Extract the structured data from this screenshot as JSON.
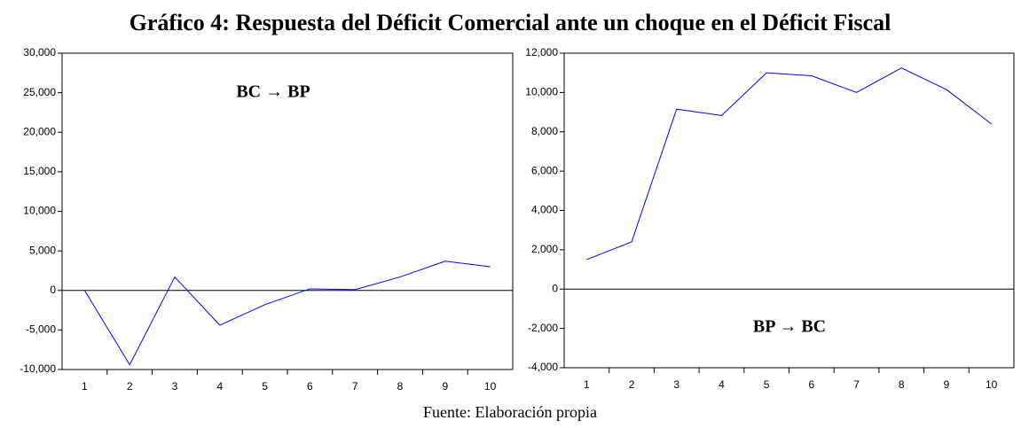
{
  "title": "Gráfico 4: Respuesta del Déficit Comercial ante un choque en el Déficit Fiscal",
  "source": "Fuente: Elaboración propia",
  "chart_data": [
    {
      "type": "line",
      "annotation": "BC → BP",
      "categories": [
        "1",
        "2",
        "3",
        "4",
        "5",
        "6",
        "7",
        "8",
        "9",
        "10"
      ],
      "series": [
        {
          "color": "#0000ff",
          "values": [
            0,
            -9400,
            1700,
            -4400,
            -1800,
            200,
            100,
            1700,
            3700,
            3000
          ]
        }
      ],
      "ylim": [
        -10000,
        30000
      ],
      "yticks": [
        {
          "value": -10000,
          "label": "-10,000"
        },
        {
          "value": -5000,
          "label": "-5,000"
        },
        0,
        {
          "value": 5000,
          "label": "5,000"
        },
        {
          "value": 10000,
          "label": "10,000"
        },
        {
          "value": 15000,
          "label": "15,000"
        },
        {
          "value": 20000,
          "label": "20,000"
        },
        {
          "value": 25000,
          "label": "25,000"
        },
        {
          "value": 30000,
          "label": "30,000"
        }
      ]
    },
    {
      "type": "line",
      "annotation": "BP → BC",
      "categories": [
        "1",
        "2",
        "3",
        "4",
        "5",
        "6",
        "7",
        "8",
        "9",
        "10"
      ],
      "series": [
        {
          "color": "#0000ff",
          "values": [
            1500,
            2400,
            9150,
            8830,
            11000,
            10850,
            10000,
            11250,
            10150,
            8400
          ]
        }
      ],
      "ylim": [
        -4000,
        12000
      ],
      "yticks": [
        {
          "value": -4000,
          "label": "-4,000"
        },
        {
          "value": -2000,
          "label": "-2,000"
        },
        0,
        {
          "value": 2000,
          "label": "2,000"
        },
        {
          "value": 4000,
          "label": "4,000"
        },
        {
          "value": 6000,
          "label": "6,000"
        },
        {
          "value": 8000,
          "label": "8,000"
        },
        {
          "value": 10000,
          "label": "10,000"
        },
        {
          "value": 12000,
          "label": "12,000"
        }
      ]
    }
  ]
}
